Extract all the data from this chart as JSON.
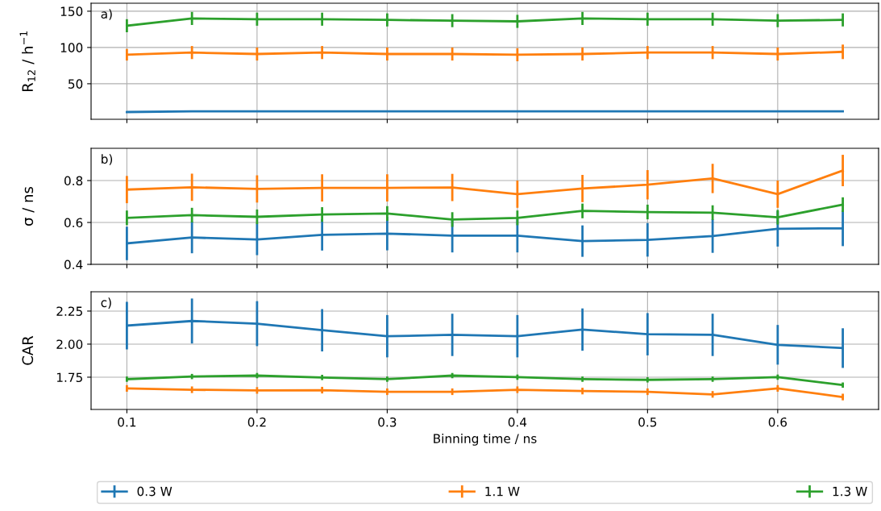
{
  "chart_data": [
    {
      "type": "line",
      "ylabel": "R$_{12}$ / h$^{−1}$",
      "annotations": [
        "a)"
      ],
      "x": [
        0.1,
        0.15,
        0.2,
        0.25,
        0.3,
        0.35,
        0.4,
        0.45,
        0.5,
        0.55,
        0.6,
        0.65
      ],
      "xlim": [
        0.0725,
        0.6775
      ],
      "xticks": [
        0.1,
        0.2,
        0.3,
        0.4,
        0.5,
        0.6
      ],
      "ylim": [
        1,
        161
      ],
      "yticks": [
        50,
        100,
        150
      ],
      "grid": true,
      "tick_labels": "y",
      "legend": "bottom",
      "series": [
        {
          "name": "0.3 W",
          "color": "#1f77b4",
          "values": [
            11,
            12,
            12,
            12,
            12,
            12,
            12,
            12,
            12,
            12,
            12,
            12
          ],
          "errors": [
            1,
            1,
            1,
            1,
            1,
            1,
            1,
            1,
            1,
            1,
            1,
            1
          ]
        },
        {
          "name": "1.1 W",
          "color": "#ff7f0e",
          "values": [
            90,
            93,
            91,
            93,
            91,
            91,
            90,
            91,
            93,
            93,
            91,
            94
          ],
          "errors": [
            8,
            9,
            9,
            9,
            9,
            9,
            9,
            9,
            9,
            9,
            9,
            10
          ]
        },
        {
          "name": "1.3 W",
          "color": "#2ca02c",
          "values": [
            130,
            140,
            139,
            139,
            138,
            137,
            136,
            140,
            139,
            139,
            137,
            138
          ],
          "errors": [
            9,
            9,
            9,
            9,
            9,
            9,
            9,
            9,
            9,
            9,
            9,
            9
          ]
        }
      ]
    },
    {
      "type": "line",
      "ylabel": "σ / ns",
      "annotations": [
        "b)"
      ],
      "x": [
        0.1,
        0.15,
        0.2,
        0.25,
        0.3,
        0.35,
        0.4,
        0.45,
        0.5,
        0.55,
        0.6,
        0.65
      ],
      "xlim": [
        0.0725,
        0.6775
      ],
      "xticks": [
        0.1,
        0.2,
        0.3,
        0.4,
        0.5,
        0.6
      ],
      "ylim": [
        0.4,
        0.954
      ],
      "yticks": [
        0.4,
        0.6,
        0.8
      ],
      "grid": true,
      "tick_labels": "y",
      "series": [
        {
          "color": "#1f77b4",
          "values": [
            0.5,
            0.528,
            0.519,
            0.541,
            0.547,
            0.537,
            0.537,
            0.511,
            0.517,
            0.535,
            0.57,
            0.572
          ],
          "errors": [
            0.08,
            0.075,
            0.075,
            0.075,
            0.08,
            0.08,
            0.08,
            0.075,
            0.08,
            0.08,
            0.085,
            0.085
          ]
        },
        {
          "color": "#ff7f0e",
          "values": [
            0.757,
            0.768,
            0.76,
            0.765,
            0.765,
            0.767,
            0.735,
            0.762,
            0.78,
            0.81,
            0.735,
            0.848
          ],
          "errors": [
            0.065,
            0.065,
            0.065,
            0.065,
            0.065,
            0.065,
            0.065,
            0.065,
            0.07,
            0.07,
            0.065,
            0.075
          ]
        },
        {
          "color": "#2ca02c",
          "values": [
            0.622,
            0.635,
            0.627,
            0.638,
            0.643,
            0.614,
            0.622,
            0.655,
            0.65,
            0.647,
            0.625,
            0.685
          ],
          "errors": [
            0.035,
            0.035,
            0.035,
            0.035,
            0.035,
            0.035,
            0.035,
            0.035,
            0.035,
            0.035,
            0.035,
            0.035
          ]
        }
      ]
    },
    {
      "type": "line",
      "ylabel": "CAR",
      "xlabel": "Binning time / ns",
      "annotations": [
        "c)"
      ],
      "x": [
        0.1,
        0.15,
        0.2,
        0.25,
        0.3,
        0.35,
        0.4,
        0.45,
        0.5,
        0.55,
        0.6,
        0.65
      ],
      "xlim": [
        0.0725,
        0.6775
      ],
      "xticks": [
        0.1,
        0.2,
        0.3,
        0.4,
        0.5,
        0.6
      ],
      "ylim": [
        1.506,
        2.396
      ],
      "yticks": [
        1.75,
        {
          "value": 2.0,
          "label": "2.00"
        },
        2.25
      ],
      "grid": true,
      "series": [
        {
          "color": "#1f77b4",
          "values": [
            2.14,
            2.175,
            2.155,
            2.105,
            2.06,
            2.07,
            2.06,
            2.11,
            2.075,
            2.07,
            1.995,
            1.97
          ],
          "errors": [
            0.18,
            0.17,
            0.17,
            0.16,
            0.16,
            0.16,
            0.16,
            0.16,
            0.16,
            0.16,
            0.15,
            0.15
          ]
        },
        {
          "color": "#ff7f0e",
          "values": [
            1.665,
            1.655,
            1.65,
            1.652,
            1.64,
            1.64,
            1.655,
            1.645,
            1.64,
            1.62,
            1.665,
            1.6
          ],
          "errors": [
            0.025,
            0.025,
            0.025,
            0.025,
            0.025,
            0.025,
            0.025,
            0.025,
            0.025,
            0.025,
            0.025,
            0.025
          ]
        },
        {
          "color": "#2ca02c",
          "values": [
            1.735,
            1.755,
            1.762,
            1.748,
            1.735,
            1.762,
            1.75,
            1.735,
            1.73,
            1.735,
            1.75,
            1.69
          ],
          "errors": [
            0.02,
            0.02,
            0.02,
            0.02,
            0.02,
            0.02,
            0.02,
            0.02,
            0.02,
            0.02,
            0.02,
            0.02
          ]
        }
      ]
    }
  ]
}
